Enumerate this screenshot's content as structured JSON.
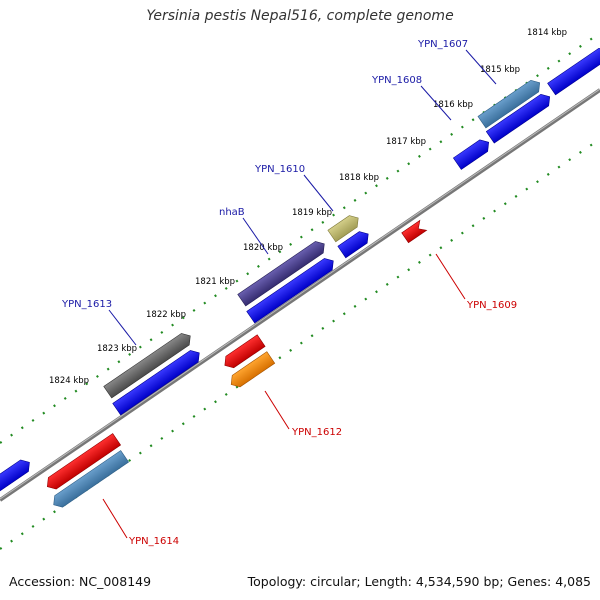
{
  "title": "Yersinia pestis Nepal516, complete genome",
  "footer": {
    "accession": "Accession: NC_008149",
    "summary": "Topology: circular; Length: 4,534,590 bp; Genes: 4,085"
  },
  "ticks": [
    "1814 kbp",
    "1815 kbp",
    "1816 kbp",
    "1817 kbp",
    "1818 kbp",
    "1819 kbp",
    "1820 kbp",
    "1821 kbp",
    "1822 kbp",
    "1823 kbp",
    "1824 kbp"
  ],
  "forward_labels": [
    "YPN_1607",
    "YPN_1608",
    "YPN_1610",
    "nhaB",
    "YPN_1613"
  ],
  "reverse_labels": [
    "YPN_1609",
    "YPN_1612",
    "YPN_1614"
  ],
  "colors": {
    "forward_label": "#1a1aa6",
    "reverse_label": "#cc0000",
    "cds_forward": "#0000ee",
    "cds_reverse": "#ee0000",
    "steelblue": "#4682b4",
    "slate": "#483d8b",
    "khaki": "#bdb76b",
    "gray": "#666666",
    "orange": "#ff8c00",
    "backbone": "#888888",
    "tick": "#228b22"
  }
}
